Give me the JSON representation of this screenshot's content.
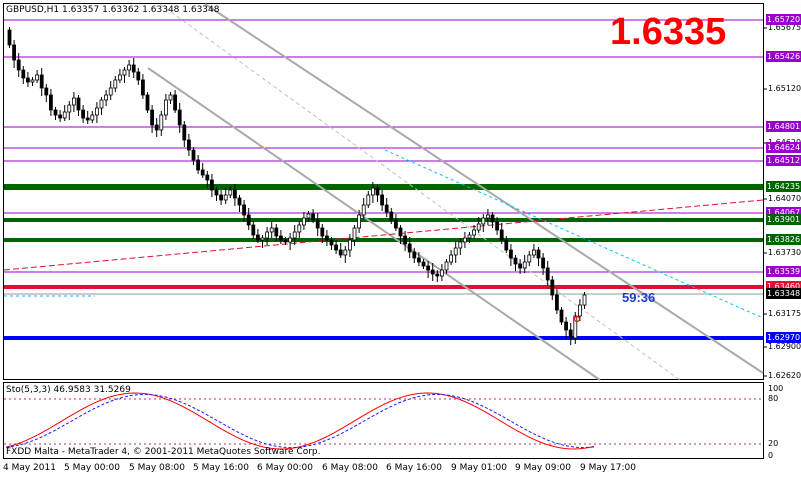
{
  "header": {
    "symbol_info": "GBPUSD,H1  1.63357 1.63362 1.63348 1.63348",
    "big_price": "1.6335",
    "countdown": "59:36"
  },
  "price_scale": [
    "1.65675",
    "1.65120",
    "1.64620",
    "1.64070",
    "1.63730",
    "1.63175",
    "1.62900",
    "1.62620"
  ],
  "price_labels": [
    {
      "text": "1.65720",
      "color": "#9900cc"
    },
    {
      "text": "1.65426",
      "color": "#9900cc"
    },
    {
      "text": "1.64801",
      "color": "#9900cc"
    },
    {
      "text": "1.64624",
      "color": "#9900cc"
    },
    {
      "text": "1.64512",
      "color": "#9900cc"
    },
    {
      "text": "1.64235",
      "color": "#006400"
    },
    {
      "text": "1.64067",
      "color": "#9900cc"
    },
    {
      "text": "1.63901",
      "color": "#006400"
    },
    {
      "text": "1.63826",
      "color": "#006400"
    },
    {
      "text": "1.63539",
      "color": "#9900cc"
    },
    {
      "text": "1.63460",
      "color": "#dd1133"
    },
    {
      "text": "1.63348",
      "color": "#000000"
    },
    {
      "text": "1.62970",
      "color": "#0000ff"
    }
  ],
  "indicator": {
    "label": "Sto(5,3,3) 46.9583 31.5269",
    "levels": [
      "100",
      "80",
      "20",
      "0"
    ]
  },
  "footer": {
    "copyright": "FXDD Malta - MetaTrader 4, © 2001-2011 MetaQuotes Software Corp."
  },
  "time_axis": [
    "4 May 2011",
    "5 May 00:00",
    "5 May 08:00",
    "5 May 16:00",
    "6 May 00:00",
    "6 May 08:00",
    "6 May 16:00",
    "9 May 01:00",
    "9 May 09:00",
    "9 May 17:00"
  ],
  "colors": {
    "resistance_purple": "#9900cc",
    "green_level": "#006400",
    "red_level": "#dd1133",
    "blue_level": "#0000ff",
    "channel_gray": "#a9a9a9"
  }
}
